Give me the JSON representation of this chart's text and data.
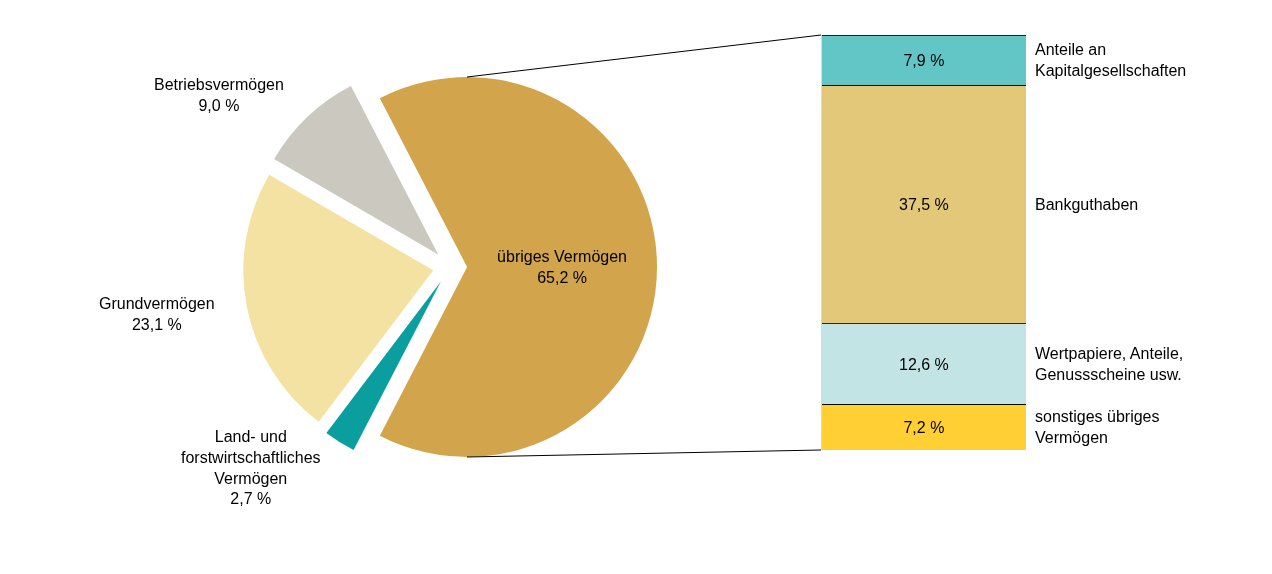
{
  "chart_data": [
    {
      "type": "pie",
      "categories": [
        "übriges Vermögen",
        "Land- und forstwirtschaftliches Vermögen",
        "Grundvermögen",
        "Betriebsvermögen"
      ],
      "values": [
        65.2,
        2.7,
        23.1,
        9.0
      ],
      "colors": [
        "#d2a54c",
        "#0a9e9f",
        "#f3e2a2",
        "#cbc8c0"
      ],
      "value_labels": [
        "65,2 %",
        "2,7 %",
        "23,1 %",
        "9,0 %"
      ]
    },
    {
      "type": "bar",
      "stacked": true,
      "tick_labels": false,
      "categories": [
        null
      ],
      "series": [
        {
          "name": "sonstiges übriges Vermögen",
          "color": "#ffcf33",
          "values": [
            7.2
          ],
          "value_labels": [
            "7,2 %"
          ]
        },
        {
          "name": "Wertpapiere, Anteile, Genussscheine usw.",
          "color": "#c3e4e5",
          "values": [
            12.6
          ],
          "value_labels": [
            "12,6 %"
          ]
        },
        {
          "name": "Bankguthaben",
          "color": "#e3c87a",
          "values": [
            37.5
          ],
          "value_labels": [
            "37,5 %"
          ]
        },
        {
          "name": "Anteile an Kapitalgesellschaften",
          "color": "#62c6c7",
          "values": [
            7.9
          ],
          "value_labels": [
            "7,9 %"
          ]
        }
      ]
    }
  ]
}
